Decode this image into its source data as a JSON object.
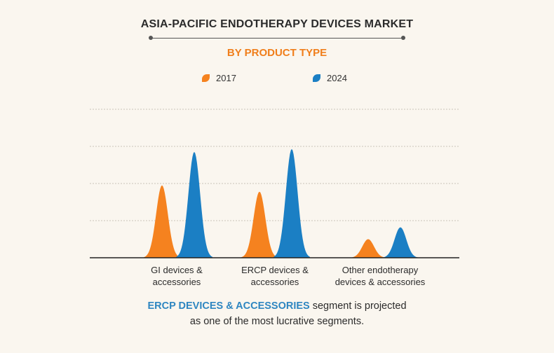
{
  "chart_data": {
    "type": "area",
    "title": "ASIA-PACIFIC ENDOTHERAPY DEVICES MARKET",
    "subtitle": "BY PRODUCT TYPE",
    "categories": [
      "GI devices &\naccessories",
      "ERCP devices &\naccessories",
      "Other endotherapy\ndevices & accessories"
    ],
    "series": [
      {
        "name": "2017",
        "color": "#f5821f",
        "values": [
          1.95,
          1.78,
          0.5
        ]
      },
      {
        "name": "2024",
        "color": "#1b7fc4",
        "values": [
          2.85,
          2.93,
          0.82
        ]
      }
    ],
    "ylim": [
      0,
      4
    ],
    "grid": true,
    "legend_position": "top-center"
  },
  "footer": {
    "highlight": "ERCP DEVICES & ACCESSORIES",
    "line1_rest": " segment is projected",
    "line2": "as one of the most lucrative segments."
  },
  "colors": {
    "accent": "#f07e1b",
    "highlight": "#2e86c1",
    "background": "#faf6ef"
  }
}
